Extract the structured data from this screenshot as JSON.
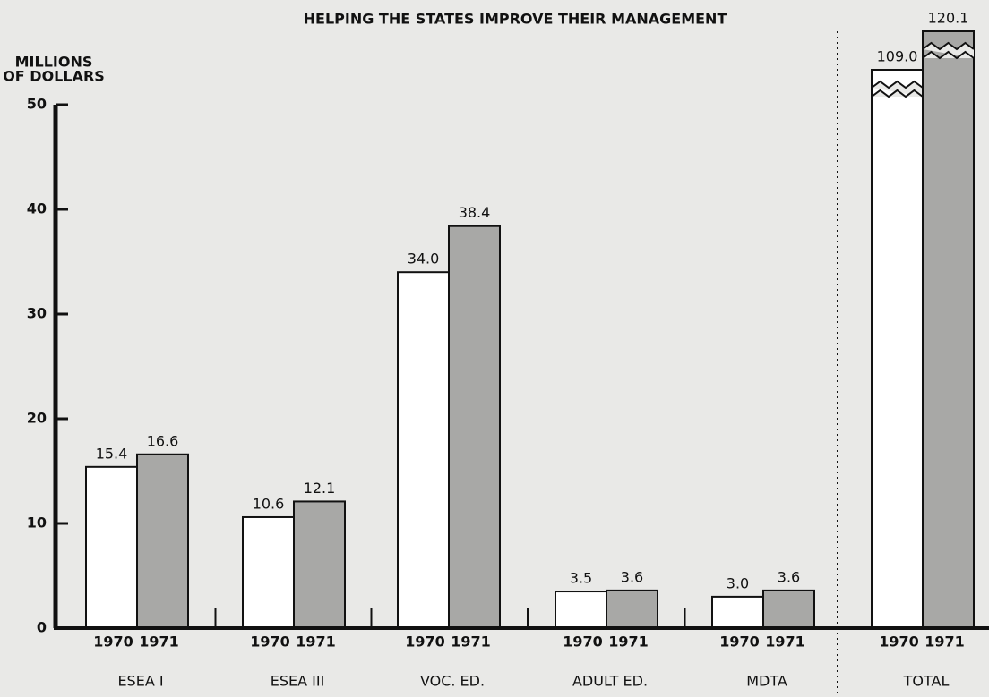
{
  "chart_data": {
    "type": "bar",
    "title": "HELPING THE STATES IMPROVE THEIR MANAGEMENT",
    "y_label": [
      "MILLIONS",
      "OF DOLLARS"
    ],
    "categories": [
      "ESEA I",
      "ESEA III",
      "VOC. ED.",
      "ADULT ED.",
      "MDTA",
      "TOTAL"
    ],
    "series": [
      {
        "name": "1970",
        "color": "#ffffff",
        "values": [
          15.4,
          10.6,
          34.0,
          3.5,
          3.0,
          109.0
        ],
        "value_labels": [
          "15.4",
          "10.6",
          "34.0",
          "3.5",
          "3.0",
          "109.0"
        ]
      },
      {
        "name": "1971",
        "color": "#a8a8a6",
        "values": [
          16.6,
          12.1,
          38.4,
          3.6,
          3.6,
          120.1
        ],
        "value_labels": [
          "16.6",
          "12.1",
          "38.4",
          "3.6",
          "3.6",
          "120.1"
        ]
      }
    ],
    "ylim": [
      0,
      50
    ],
    "yticks": [
      0,
      10,
      20,
      30,
      40,
      50
    ]
  }
}
